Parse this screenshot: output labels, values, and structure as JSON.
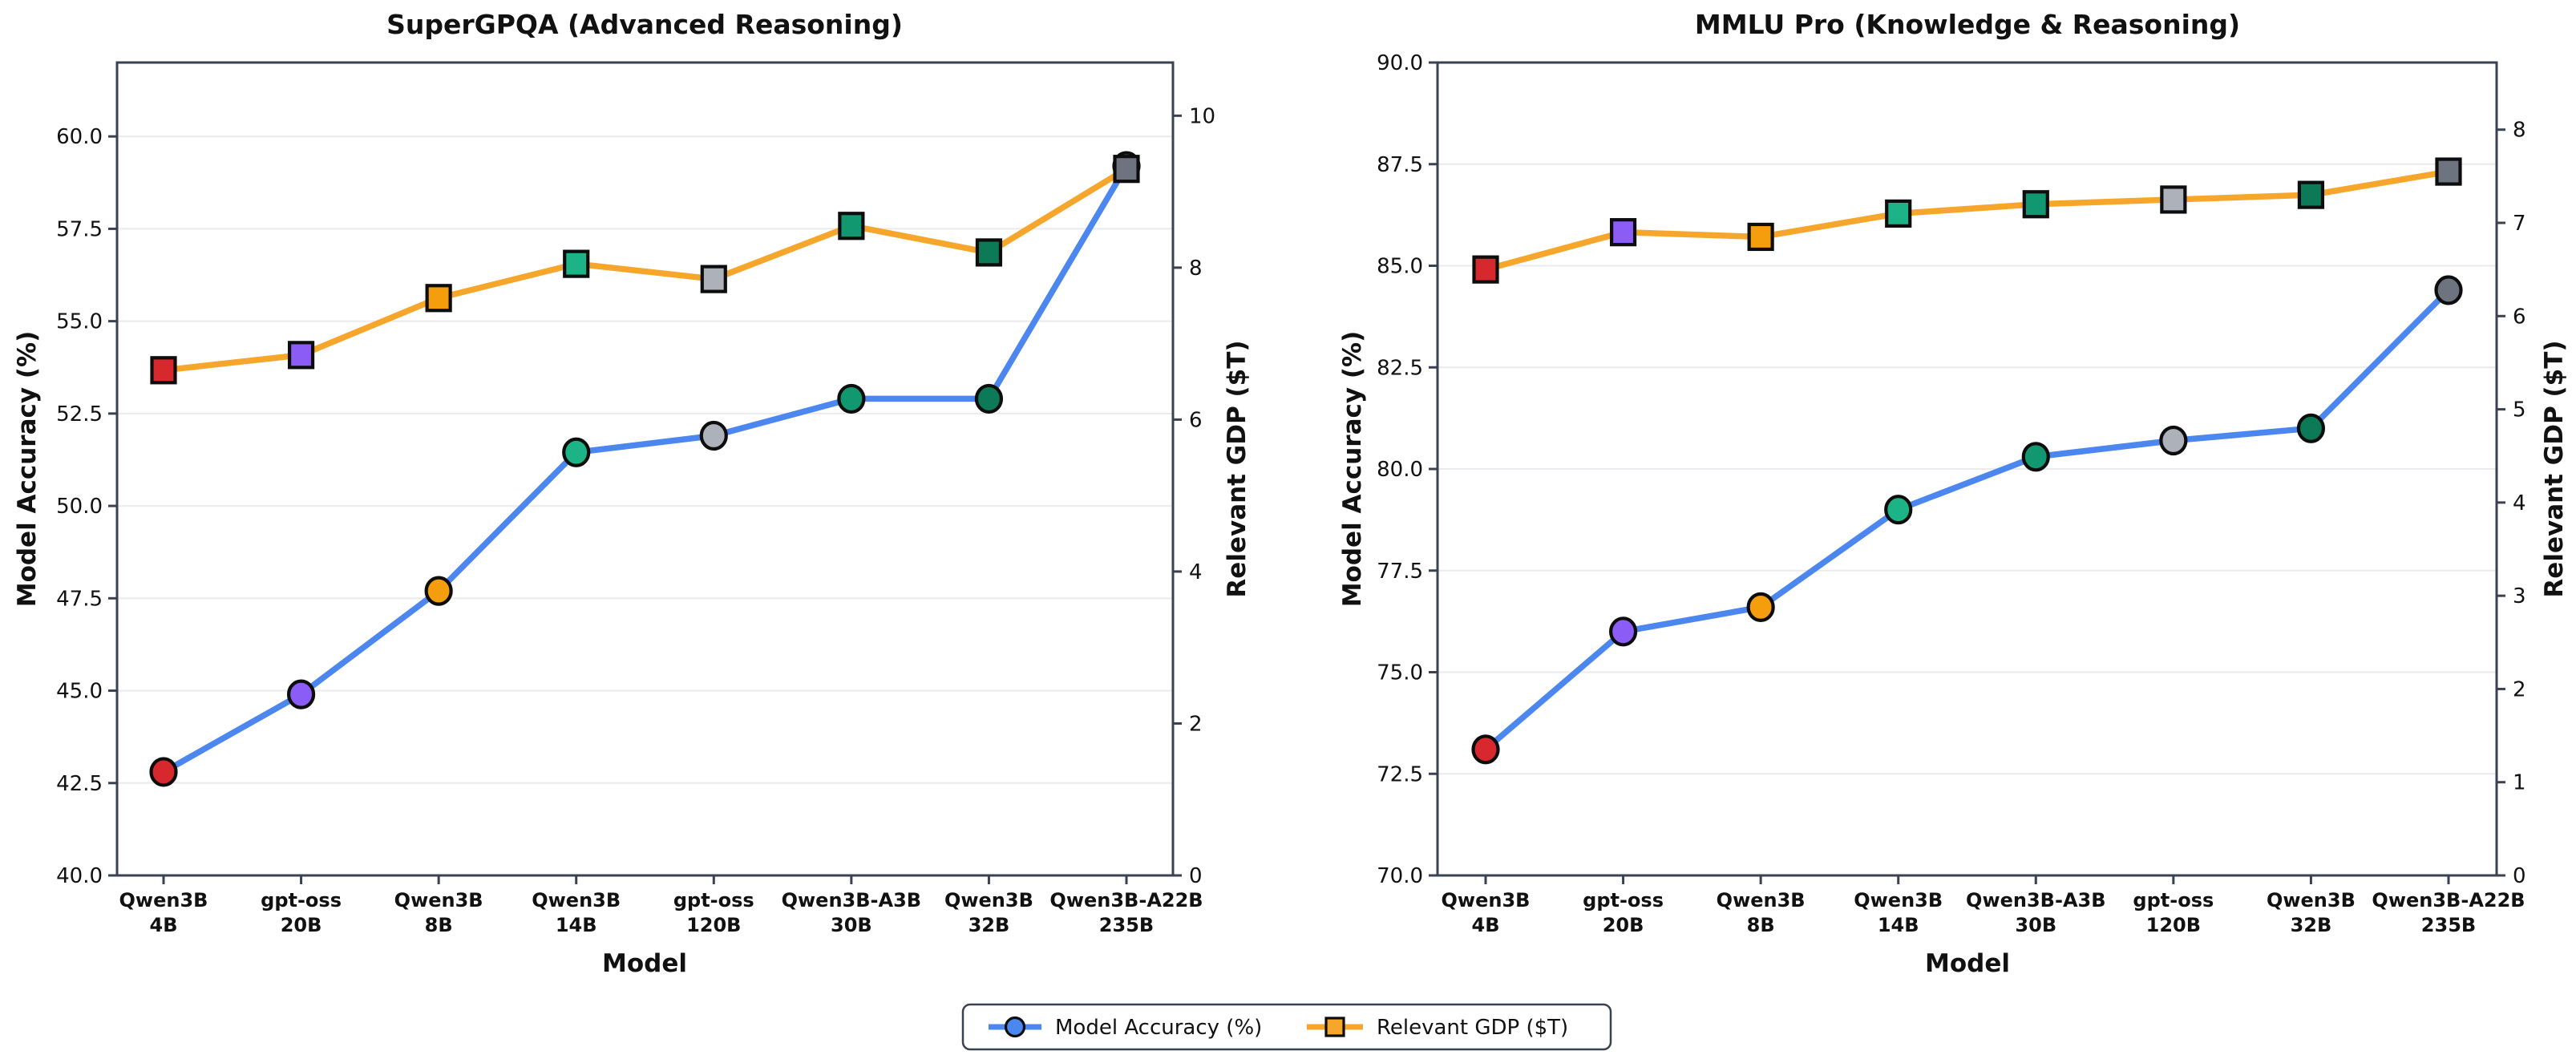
{
  "figure": {
    "background": "#ffffff",
    "spine_color": "#3a4150",
    "grid_color": "#ebebef",
    "text_color": "#111111"
  },
  "legend": {
    "items": [
      {
        "label": "Model Accuracy (%)",
        "color": "#4C86EF",
        "marker": "circle"
      },
      {
        "label": "Relevant GDP ($T)",
        "color": "#F6A62B",
        "marker": "square"
      }
    ]
  },
  "chart_data": [
    {
      "type": "line",
      "title": "SuperGPQA (Advanced Reasoning)",
      "xlabel": "Model",
      "ylabel_left": "Model Accuracy (%)",
      "ylabel_right": "Relevant GDP ($T)",
      "grid": "horizontal",
      "categories": [
        [
          "Qwen3B",
          "4B"
        ],
        [
          "gpt-oss",
          "20B"
        ],
        [
          "Qwen3B",
          "8B"
        ],
        [
          "Qwen3B",
          "14B"
        ],
        [
          "gpt-oss",
          "120B"
        ],
        [
          "Qwen3B-A3B",
          "30B"
        ],
        [
          "Qwen3B",
          "32B"
        ],
        [
          "Qwen3B-A22B",
          "235B"
        ]
      ],
      "series": [
        {
          "name": "Model Accuracy (%)",
          "axis": "left",
          "marker": "circle",
          "line_color": "#4C86EF",
          "values": [
            42.8,
            44.9,
            47.7,
            51.45,
            51.9,
            52.9,
            52.9,
            59.2
          ]
        },
        {
          "name": "Relevant GDP ($T)",
          "axis": "right",
          "marker": "square",
          "line_color": "#F6A62B",
          "values": [
            6.65,
            6.85,
            7.6,
            8.05,
            7.85,
            8.55,
            8.2,
            9.3
          ]
        }
      ],
      "marker_colors": [
        "#D7282E",
        "#8B5CF6",
        "#F49D0D",
        "#1CB487",
        "#ADB1BA",
        "#129871",
        "#0D7A57",
        "#6E7380"
      ],
      "ylim_left": [
        40,
        62
      ],
      "yticks_left": [
        "40.0",
        "42.5",
        "45.0",
        "47.5",
        "50.0",
        "52.5",
        "55.0",
        "57.5",
        "60.0"
      ],
      "ylim_right": [
        0,
        10.7
      ],
      "yticks_right": [
        "0",
        "2",
        "4",
        "6",
        "8",
        "10"
      ]
    },
    {
      "type": "line",
      "title": "MMLU Pro (Knowledge & Reasoning)",
      "xlabel": "Model",
      "ylabel_left": "Model Accuracy (%)",
      "ylabel_right": "Relevant GDP ($T)",
      "grid": "horizontal",
      "categories": [
        [
          "Qwen3B",
          "4B"
        ],
        [
          "gpt-oss",
          "20B"
        ],
        [
          "Qwen3B",
          "8B"
        ],
        [
          "Qwen3B",
          "14B"
        ],
        [
          "Qwen3B-A3B",
          "30B"
        ],
        [
          "gpt-oss",
          "120B"
        ],
        [
          "Qwen3B",
          "32B"
        ],
        [
          "Qwen3B-A22B",
          "235B"
        ]
      ],
      "series": [
        {
          "name": "Model Accuracy (%)",
          "axis": "left",
          "marker": "circle",
          "line_color": "#4C86EF",
          "values": [
            73.1,
            76.0,
            76.6,
            79.0,
            80.3,
            80.7,
            81.0,
            84.4
          ]
        },
        {
          "name": "Relevant GDP ($T)",
          "axis": "right",
          "marker": "square",
          "line_color": "#F6A62B",
          "values": [
            6.5,
            6.9,
            6.85,
            7.1,
            7.2,
            7.25,
            7.3,
            7.55
          ]
        }
      ],
      "marker_colors": [
        "#D7282E",
        "#8B5CF6",
        "#F49D0D",
        "#1CB487",
        "#129871",
        "#ADB1BA",
        "#0D7A57",
        "#6E7380"
      ],
      "ylim_left": [
        70,
        90
      ],
      "yticks_left": [
        "70.0",
        "72.5",
        "75.0",
        "77.5",
        "80.0",
        "82.5",
        "85.0",
        "87.5",
        "90.0"
      ],
      "ylim_right": [
        0,
        8.72
      ],
      "yticks_right": [
        "0",
        "1",
        "2",
        "3",
        "4",
        "5",
        "6",
        "7",
        "8"
      ]
    }
  ]
}
